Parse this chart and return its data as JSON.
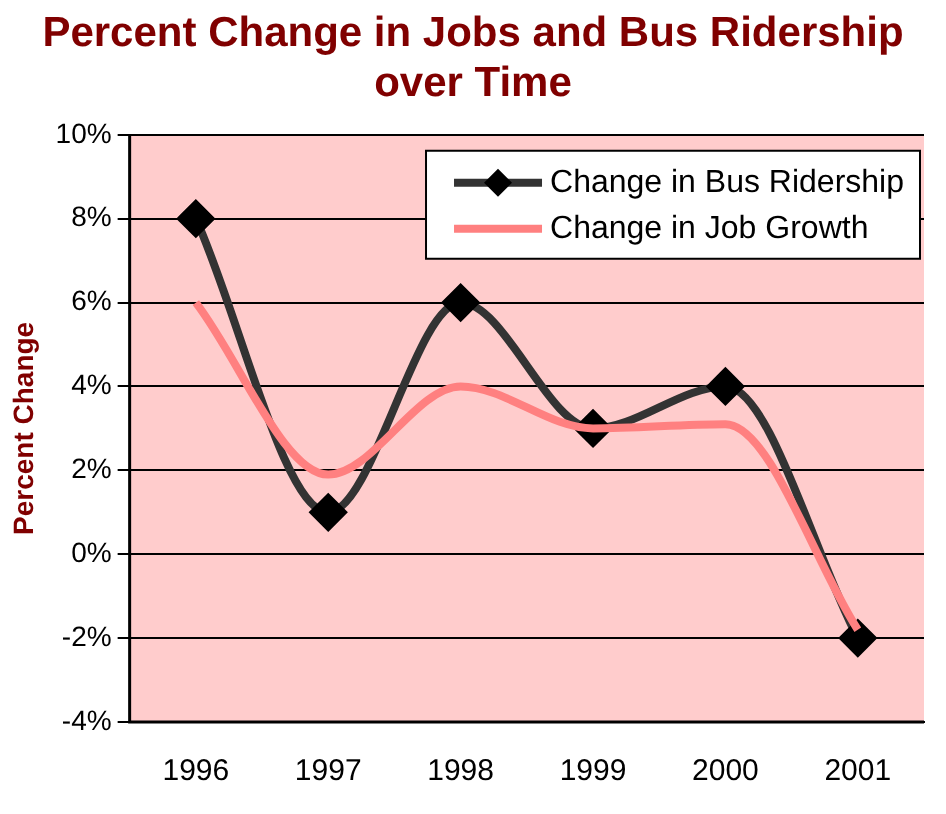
{
  "chart_data": {
    "type": "line",
    "title": "Percent Change in Jobs and Bus Ridership over Time",
    "ylabel": "Percent Change",
    "categories": [
      "1996",
      "1997",
      "1998",
      "1999",
      "2000",
      "2001"
    ],
    "series": [
      {
        "name": "Change in Bus Ridership",
        "color": "#333333",
        "marker": "diamond",
        "values": [
          8,
          1,
          6,
          3,
          4,
          -2
        ]
      },
      {
        "name": "Change in Job Growth",
        "color": "#ff8080",
        "marker": "none",
        "values": [
          6,
          1.9,
          4,
          3,
          3.1,
          -1.8
        ]
      }
    ],
    "ylim": [
      -4,
      10
    ],
    "yticks": [
      {
        "value": -4,
        "label": "-4%"
      },
      {
        "value": -2,
        "label": "-2%"
      },
      {
        "value": 0,
        "label": "0%"
      },
      {
        "value": 2,
        "label": "2%"
      },
      {
        "value": 4,
        "label": "4%"
      },
      {
        "value": 6,
        "label": "6%"
      },
      {
        "value": 8,
        "label": "8%"
      },
      {
        "value": 10,
        "label": "10%"
      }
    ],
    "grid": "y",
    "legend": "top right"
  }
}
